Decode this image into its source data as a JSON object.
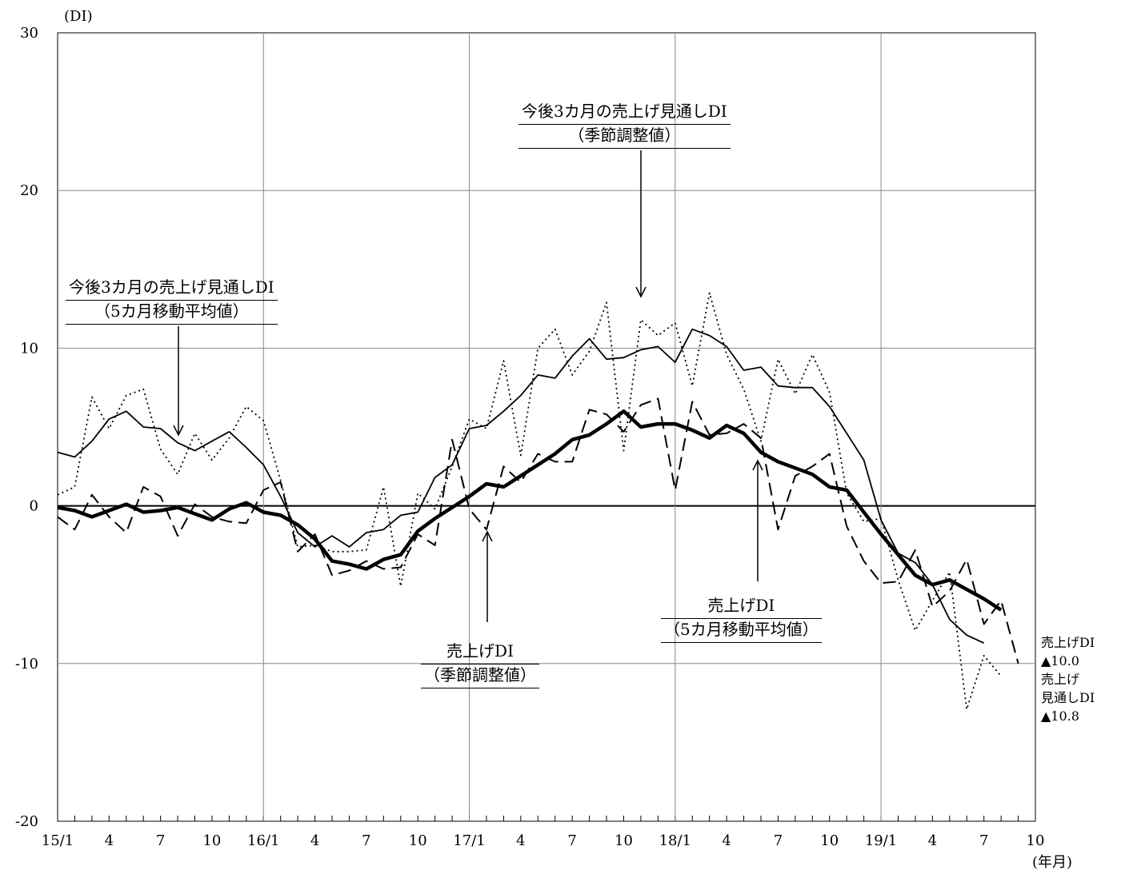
{
  "chart_data": {
    "type": "line",
    "ylabel": "(DI)",
    "xlabel": "(年月)",
    "ylim": [
      -20,
      30
    ],
    "yticks": [
      -20,
      -10,
      0,
      10,
      20,
      30
    ],
    "xticks": [
      "15/1",
      "4",
      "7",
      "10",
      "16/1",
      "4",
      "7",
      "10",
      "17/1",
      "4",
      "7",
      "10",
      "18/1",
      "4",
      "7",
      "10",
      "19/1",
      "4",
      "7",
      "10"
    ],
    "grid": true,
    "series": [
      {
        "name": "今後3カ月の売上げ見通しDI(季節調整値)",
        "style": "dotted",
        "values": [
          0.7,
          1.2,
          6.9,
          4.9,
          7.0,
          7.4,
          3.6,
          2.0,
          4.6,
          2.9,
          4.3,
          6.3,
          5.4,
          1.6,
          -2.6,
          -2.5,
          -2.9,
          -2.9,
          -2.8,
          1.2,
          -5.1,
          0.8,
          -0.2,
          2.5,
          5.5,
          4.9,
          9.2,
          3.2,
          10.0,
          11.2,
          8.3,
          9.8,
          12.9,
          3.5,
          11.8,
          10.8,
          11.6,
          7.6,
          13.5,
          9.6,
          7.4,
          4.1,
          9.3,
          7.1,
          9.6,
          7.2,
          0.8,
          -1.0,
          -0.8,
          -4.7,
          -7.9,
          -6.0,
          -4.2,
          -12.9,
          -9.5,
          -10.8
        ]
      },
      {
        "name": "今後3カ月の売上げ見通しDI(5カ月移動平均値)",
        "style": "thin-solid",
        "values": [
          3.4,
          3.1,
          4.1,
          5.5,
          6.0,
          5.0,
          4.9,
          4.0,
          3.5,
          4.1,
          4.7,
          3.7,
          2.6,
          0.6,
          -1.7,
          -2.6,
          -1.9,
          -2.6,
          -1.7,
          -1.5,
          -0.6,
          -0.4,
          1.8,
          2.6,
          4.9,
          5.1,
          6.0,
          7.0,
          8.3,
          8.1,
          9.5,
          10.6,
          9.3,
          9.4,
          9.9,
          10.1,
          9.1,
          11.2,
          10.8,
          10.1,
          8.6,
          8.8,
          7.6,
          7.5,
          7.5,
          6.3,
          4.6,
          2.9,
          -0.9,
          -3.0,
          -3.6,
          -5.0,
          -7.2,
          -8.2,
          -8.7
        ]
      },
      {
        "name": "売上げDI(季節調整値)",
        "style": "dashed",
        "values": [
          -0.7,
          -1.5,
          0.7,
          -0.7,
          -1.7,
          1.2,
          0.6,
          -1.9,
          0.1,
          -0.7,
          -1.0,
          -1.1,
          1.0,
          1.5,
          -2.9,
          -1.8,
          -4.4,
          -4.1,
          -3.5,
          -4.0,
          -3.9,
          -1.8,
          -2.5,
          4.2,
          -0.2,
          -1.5,
          2.5,
          1.5,
          3.3,
          2.8,
          2.8,
          6.1,
          5.8,
          4.7,
          6.4,
          6.8,
          1.0,
          6.6,
          4.5,
          4.6,
          5.2,
          4.3,
          -1.5,
          1.9,
          2.5,
          3.3,
          -1.3,
          -3.5,
          -4.9,
          -4.8,
          -2.8,
          -6.4,
          -5.4,
          -3.4,
          -7.5,
          -6.0,
          -10.0
        ]
      },
      {
        "name": "売上げDI(5カ月移動平均値)",
        "style": "thick-solid",
        "values": [
          -0.1,
          -0.3,
          -0.7,
          -0.3,
          0.1,
          -0.4,
          -0.3,
          -0.1,
          -0.5,
          -0.9,
          -0.2,
          0.2,
          -0.4,
          -0.6,
          -1.2,
          -2.1,
          -3.5,
          -3.7,
          -4.0,
          -3.4,
          -3.1,
          -1.6,
          -0.8,
          -0.1,
          0.6,
          1.4,
          1.2,
          1.9,
          2.6,
          3.3,
          4.2,
          4.5,
          5.2,
          6.0,
          5.0,
          5.2,
          5.2,
          4.8,
          4.3,
          5.1,
          4.6,
          3.4,
          2.8,
          2.4,
          2.0,
          1.2,
          1.0,
          -0.4,
          -1.8,
          -3.1,
          -4.4,
          -5.0,
          -4.7,
          -5.3,
          -5.9,
          -6.6
        ]
      }
    ],
    "annotations": {
      "outlook_sa": [
        "今後3カ月の売上げ見通しDI",
        "（季節調整値）"
      ],
      "outlook_ma": [
        "今後3カ月の売上げ見通しDI",
        "（5カ月移動平均値）"
      ],
      "sales_sa": [
        "売上げDI",
        "（季節調整値）"
      ],
      "sales_ma": [
        "売上げDI",
        "（5カ月移動平均値）"
      ],
      "latest": [
        "売上げDI",
        "▲10.0",
        "売上げ",
        "見通しDI",
        "▲10.8"
      ]
    }
  }
}
